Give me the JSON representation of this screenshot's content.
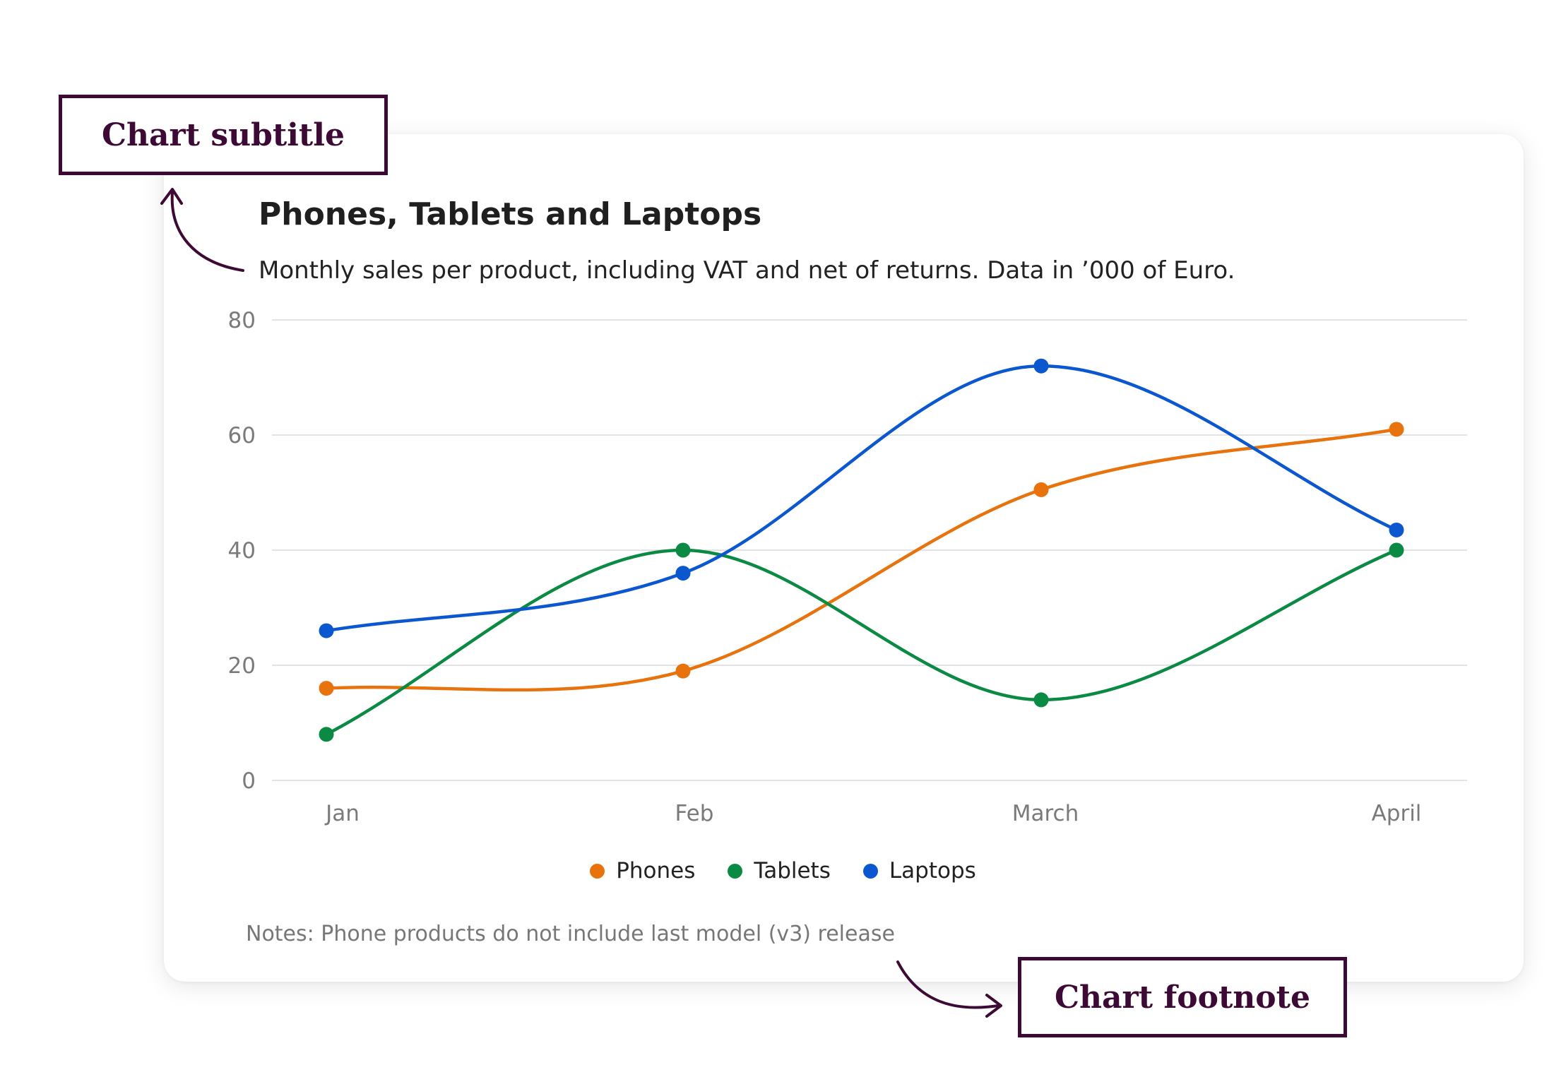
{
  "callouts": {
    "subtitle_label": "Chart subtitle",
    "footnote_label": "Chart footnote"
  },
  "colors": {
    "callout": "#3c0a34",
    "grid": "#e3e3e3",
    "axis_text": "#7a7a7a"
  },
  "chart_data": {
    "type": "line",
    "title": "Phones, Tablets and Laptops",
    "subtitle": "Monthly sales per product, including VAT and net of returns. Data in ’000 of Euro.",
    "categories": [
      "Jan",
      "Feb",
      "March",
      "April"
    ],
    "ylim": [
      0,
      80
    ],
    "yticks": [
      0,
      20,
      40,
      60,
      80
    ],
    "grid": true,
    "smooth": true,
    "legend_position": "bottom-center",
    "series": [
      {
        "name": "Phones",
        "color": "#e8720c",
        "values": [
          16,
          19,
          50.5,
          61
        ]
      },
      {
        "name": "Tablets",
        "color": "#0a8a43",
        "values": [
          8,
          40,
          14,
          40
        ]
      },
      {
        "name": "Laptops",
        "color": "#0b57d0",
        "values": [
          26,
          36,
          72,
          43.5
        ]
      }
    ],
    "notes": "Notes: Phone products do not include last model (v3) release"
  }
}
